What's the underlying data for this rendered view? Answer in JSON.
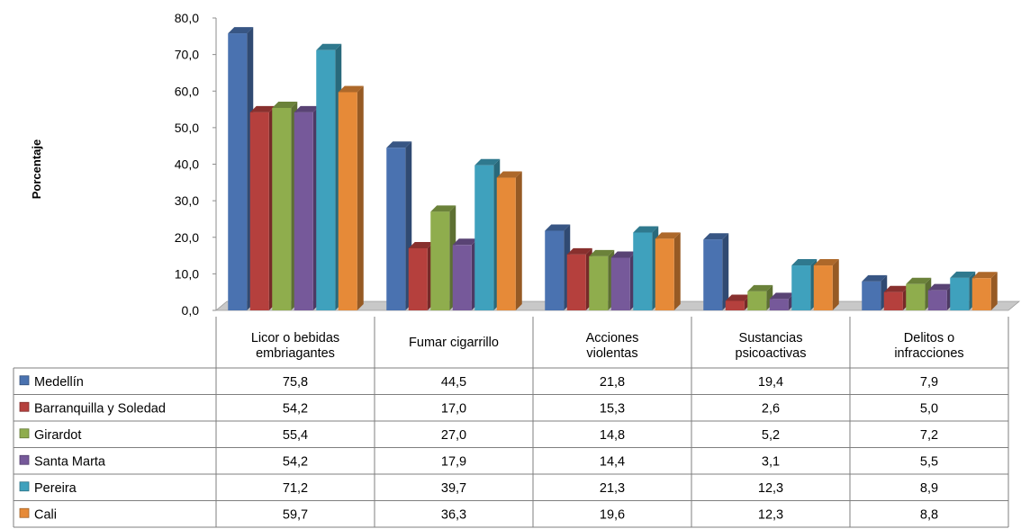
{
  "chart_data": {
    "type": "bar",
    "ylabel": "Porcentaje",
    "ylim": [
      0,
      80
    ],
    "yticks": [
      "0,0",
      "10,0",
      "20,0",
      "30,0",
      "40,0",
      "50,0",
      "60,0",
      "70,0",
      "80,0"
    ],
    "categories": [
      [
        "Licor o bebidas",
        "embriagantes"
      ],
      [
        "Fumar cigarrillo"
      ],
      [
        "Acciones",
        "violentas"
      ],
      [
        "Sustancias",
        "psicoactivas"
      ],
      [
        "Delitos o",
        "infracciones"
      ]
    ],
    "series": [
      {
        "name": "Medellín",
        "color": "#4a72b0",
        "values": [
          75.8,
          44.5,
          21.8,
          19.4,
          7.9
        ],
        "labels": [
          "75,8",
          "44,5",
          "21,8",
          "19,4",
          "7,9"
        ]
      },
      {
        "name": "Barranquilla y Soledad",
        "color": "#b5403d",
        "values": [
          54.2,
          17.0,
          15.3,
          2.6,
          5.0
        ],
        "labels": [
          "54,2",
          "17,0",
          "15,3",
          "2,6",
          "5,0"
        ]
      },
      {
        "name": "Girardot",
        "color": "#8fad4d",
        "values": [
          55.4,
          27.0,
          14.8,
          5.2,
          7.2
        ],
        "labels": [
          "55,4",
          "27,0",
          "14,8",
          "5,2",
          "7,2"
        ]
      },
      {
        "name": "Santa Marta",
        "color": "#76599a",
        "values": [
          54.2,
          17.9,
          14.4,
          3.1,
          5.5
        ],
        "labels": [
          "54,2",
          "17,9",
          "14,4",
          "3,1",
          "5,5"
        ]
      },
      {
        "name": "Pereira",
        "color": "#3fa1bd",
        "values": [
          71.2,
          39.7,
          21.3,
          12.3,
          8.9
        ],
        "labels": [
          "71,2",
          "39,7",
          "21,3",
          "12,3",
          "8,9"
        ]
      },
      {
        "name": "Cali",
        "color": "#e68a38",
        "values": [
          59.7,
          36.3,
          19.6,
          12.3,
          8.8
        ],
        "labels": [
          "59,7",
          "36,3",
          "19,6",
          "12,3",
          "8,8"
        ]
      }
    ],
    "grid": false,
    "legend": "data-table"
  }
}
